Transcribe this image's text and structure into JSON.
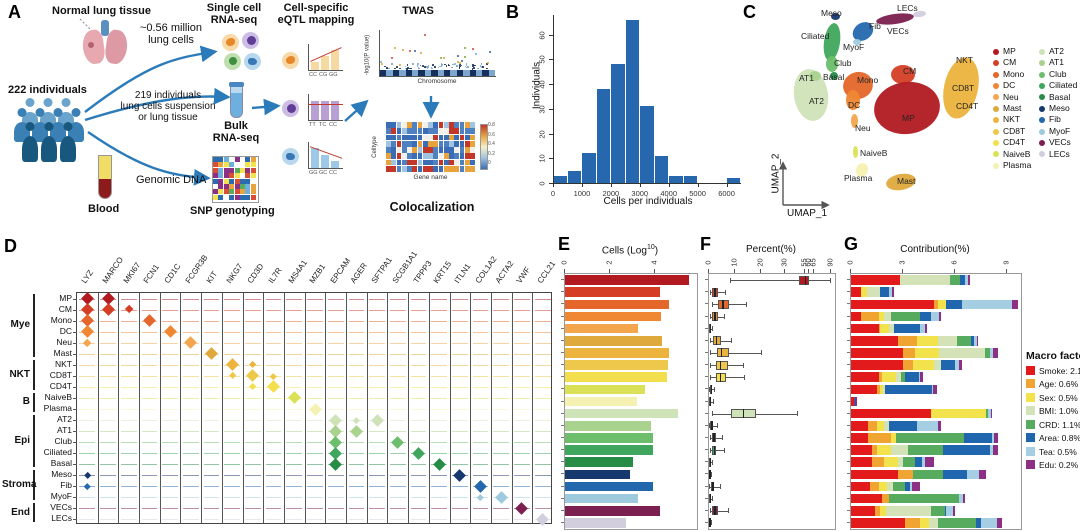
{
  "panel_labels": {
    "a": "A",
    "b": "B",
    "c": "C",
    "d": "D",
    "e": "E",
    "f": "F",
    "g": "G"
  },
  "panel_a": {
    "normal_lung_tissue": "Normal lung tissue",
    "million_cells": "~0.56 million\nlung cells",
    "individuals": "222 individuals",
    "suspension": "219 individuals\nlung cells suspension\nor lung tissue",
    "single_cell": "Single cell\nRNA-seq",
    "bulk": "Bulk\nRNA-seq",
    "genomic_dna": "Genomic DNA",
    "blood": "Blood",
    "snp": "SNP genotyping",
    "eqtl": "Cell-specific\neQTL mapping",
    "twas": "TWAS",
    "coloc": "Colocalization",
    "manhattan_ylabel": "-log10(P value)",
    "manhattan_xlabel": "Chromosome",
    "heatmap_ylabel": "Celltype",
    "heatmap_xlabel": "Gene name",
    "colorbar_ticks": [
      "0.8",
      "0.6",
      "0.4",
      "0.2",
      "0"
    ],
    "genotypes1": [
      "CC",
      "CG",
      "GG"
    ],
    "genotypes2": [
      "TT",
      "TC",
      "CC"
    ],
    "genotypes3": [
      "GG",
      "GC",
      "CC"
    ],
    "arrow_color": "#2b7bba"
  },
  "celltypes": [
    {
      "name": "MP",
      "color": "#b11a21"
    },
    {
      "name": "CM",
      "color": "#d53e25"
    },
    {
      "name": "Mono",
      "color": "#e4662a"
    },
    {
      "name": "DC",
      "color": "#ef8733"
    },
    {
      "name": "Neu",
      "color": "#f3a64e"
    },
    {
      "name": "Mast",
      "color": "#dfa93c"
    },
    {
      "name": "NKT",
      "color": "#ecb33d"
    },
    {
      "name": "CD8T",
      "color": "#eec84a"
    },
    {
      "name": "CD4T",
      "color": "#f3df4d"
    },
    {
      "name": "NaiveB",
      "color": "#dbe156"
    },
    {
      "name": "Plasma",
      "color": "#f5f1b2"
    },
    {
      "name": "AT2",
      "color": "#cfe3b8"
    },
    {
      "name": "AT1",
      "color": "#a9d28e"
    },
    {
      "name": "Club",
      "color": "#6cbe6c"
    },
    {
      "name": "Ciliated",
      "color": "#40a65d"
    },
    {
      "name": "Basal",
      "color": "#268c46"
    },
    {
      "name": "Meso",
      "color": "#17386f"
    },
    {
      "name": "Fib",
      "color": "#2368ad"
    },
    {
      "name": "MyoF",
      "color": "#9ecade"
    },
    {
      "name": "VECs",
      "color": "#7b2050"
    },
    {
      "name": "LECs",
      "color": "#d3cedd"
    }
  ],
  "chart_data": [
    {
      "id": "B",
      "type": "bar",
      "title": "",
      "xlabel": "Cells per individuals",
      "ylabel": "Individuals",
      "bin_width": 500,
      "bin_starts": [
        0,
        500,
        1000,
        1500,
        2000,
        2500,
        3000,
        3500,
        4000,
        4500,
        5000,
        5500,
        6000
      ],
      "values": [
        3,
        5,
        12,
        38,
        48,
        66,
        31,
        11,
        3,
        3,
        0,
        0,
        2
      ],
      "xticks": [
        0,
        1000,
        2000,
        3000,
        4000,
        5000,
        6000
      ],
      "yticks": [
        0,
        10,
        20,
        30,
        40,
        50,
        60
      ],
      "xlim": [
        0,
        6500
      ],
      "ylim": [
        0,
        68
      ],
      "bar_color": "#2767ae",
      "grid": false
    },
    {
      "id": "C",
      "type": "scatter",
      "xlabel": "UMAP_1",
      "ylabel": "UMAP_2",
      "legend_col1": [
        "MP",
        "CM",
        "Mono",
        "DC",
        "Neu",
        "Mast",
        "NKT",
        "CD8T",
        "CD4T",
        "NaiveB",
        "Plasma"
      ],
      "legend_col2": [
        "AT2",
        "AT1",
        "Club",
        "Ciliated",
        "Basal",
        "Meso",
        "Fib",
        "MyoF",
        "VECs",
        "LECs"
      ],
      "blobs": [
        {
          "ct": "AT2",
          "x": 76,
          "y": 95,
          "w": 34,
          "h": 52,
          "rot": -8
        },
        {
          "ct": "AT1",
          "x": 80,
          "y": 76,
          "w": 12,
          "h": 10,
          "rot": 0
        },
        {
          "ct": "Basal",
          "x": 99,
          "y": 76,
          "w": 8,
          "h": 8,
          "rot": 0
        },
        {
          "ct": "Ciliated",
          "x": 97,
          "y": 42,
          "w": 16,
          "h": 38,
          "rot": 8
        },
        {
          "ct": "Club",
          "x": 97,
          "y": 64,
          "w": 12,
          "h": 16,
          "rot": 0
        },
        {
          "ct": "Meso",
          "x": 100,
          "y": 16,
          "w": 9,
          "h": 7,
          "rot": 0
        },
        {
          "ct": "Fib",
          "x": 128,
          "y": 31,
          "w": 22,
          "h": 17,
          "rot": -35
        },
        {
          "ct": "MyoF",
          "x": 122,
          "y": 42,
          "w": 8,
          "h": 6,
          "rot": 0
        },
        {
          "ct": "VECs",
          "x": 160,
          "y": 19,
          "w": 38,
          "h": 10,
          "rot": -8
        },
        {
          "ct": "LECs",
          "x": 184,
          "y": 14,
          "w": 13,
          "h": 6,
          "rot": -8
        },
        {
          "ct": "Mono",
          "x": 123,
          "y": 85,
          "w": 30,
          "h": 27,
          "rot": -15
        },
        {
          "ct": "DC",
          "x": 118,
          "y": 100,
          "w": 14,
          "h": 20,
          "rot": 0
        },
        {
          "ct": "Neu",
          "x": 119,
          "y": 121,
          "w": 7,
          "h": 14,
          "rot": 0
        },
        {
          "ct": "CM",
          "x": 168,
          "y": 74,
          "w": 24,
          "h": 19,
          "rot": 0
        },
        {
          "ct": "MP",
          "x": 172,
          "y": 108,
          "w": 66,
          "h": 52,
          "rot": -8
        },
        {
          "ct": "NKT",
          "x": 226,
          "y": 88,
          "w": 34,
          "h": 62,
          "rot": 12
        },
        {
          "ct": "NaiveB",
          "x": 120,
          "y": 152,
          "w": 5,
          "h": 12,
          "rot": 0
        },
        {
          "ct": "Plasma",
          "x": 127,
          "y": 170,
          "w": 12,
          "h": 14,
          "rot": 20
        },
        {
          "ct": "Mast",
          "x": 166,
          "y": 182,
          "w": 30,
          "h": 16,
          "rot": -10
        }
      ],
      "labels": [
        {
          "t": "Meso",
          "x": 86,
          "y": 8
        },
        {
          "t": "LECs",
          "x": 162,
          "y": 3
        },
        {
          "t": "VECs",
          "x": 152,
          "y": 26
        },
        {
          "t": "Fib",
          "x": 134,
          "y": 21
        },
        {
          "t": "MyoF",
          "x": 108,
          "y": 42
        },
        {
          "t": "Ciliated",
          "x": 66,
          "y": 31
        },
        {
          "t": "Club",
          "x": 99,
          "y": 58
        },
        {
          "t": "AT1",
          "x": 64,
          "y": 73
        },
        {
          "t": "Basal",
          "x": 88,
          "y": 72
        },
        {
          "t": "AT2",
          "x": 74,
          "y": 96
        },
        {
          "t": "Mono",
          "x": 122,
          "y": 75
        },
        {
          "t": "CM",
          "x": 168,
          "y": 66
        },
        {
          "t": "DC",
          "x": 113,
          "y": 100
        },
        {
          "t": "MP",
          "x": 167,
          "y": 113
        },
        {
          "t": "Neu",
          "x": 120,
          "y": 123
        },
        {
          "t": "NKT",
          "x": 221,
          "y": 55
        },
        {
          "t": "CD8T",
          "x": 217,
          "y": 83
        },
        {
          "t": "CD4T",
          "x": 221,
          "y": 101
        },
        {
          "t": "NaiveB",
          "x": 125,
          "y": 148
        },
        {
          "t": "Plasma",
          "x": 109,
          "y": 173
        },
        {
          "t": "Mast",
          "x": 162,
          "y": 176
        }
      ]
    },
    {
      "id": "D",
      "type": "violin-matrix",
      "genes": [
        "LYZ",
        "MARCO",
        "MKI67",
        "FCN1",
        "CD1C",
        "FCGR3B",
        "KIT",
        "NKG7",
        "CD3D",
        "IL7R",
        "MS4A1",
        "MZB1",
        "EPCAM",
        "AGER",
        "SFTPA1",
        "SCGB1A1",
        "TPPP3",
        "KRT15",
        "ITLN1",
        "COL1A2",
        "ACTA2",
        "VWF",
        "CCL21"
      ],
      "groups": [
        {
          "label": "Mye",
          "span": 6
        },
        {
          "label": "NKT",
          "span": 3
        },
        {
          "label": "B",
          "span": 2
        },
        {
          "label": "Epi",
          "span": 5
        },
        {
          "label": "Stroma",
          "span": 3
        },
        {
          "label": "End",
          "span": 2
        }
      ],
      "markers": [
        [
          0,
          0,
          1
        ],
        [
          0,
          1,
          1
        ],
        [
          1,
          0,
          1
        ],
        [
          1,
          1,
          1
        ],
        [
          1,
          2,
          0.7
        ],
        [
          2,
          0,
          1
        ],
        [
          2,
          3,
          1
        ],
        [
          3,
          0,
          1
        ],
        [
          3,
          4,
          1
        ],
        [
          4,
          0,
          0.7
        ],
        [
          4,
          5,
          1
        ],
        [
          5,
          6,
          1
        ],
        [
          6,
          7,
          1
        ],
        [
          6,
          8,
          0.6
        ],
        [
          7,
          7,
          0.6
        ],
        [
          7,
          8,
          1
        ],
        [
          7,
          9,
          0.5
        ],
        [
          8,
          8,
          0.6
        ],
        [
          8,
          9,
          1
        ],
        [
          9,
          10,
          1
        ],
        [
          10,
          11,
          1
        ],
        [
          11,
          12,
          1
        ],
        [
          11,
          13,
          0.5
        ],
        [
          11,
          14,
          1
        ],
        [
          12,
          12,
          1
        ],
        [
          12,
          13,
          1
        ],
        [
          13,
          12,
          1
        ],
        [
          13,
          15,
          1
        ],
        [
          14,
          12,
          1
        ],
        [
          14,
          16,
          1
        ],
        [
          15,
          12,
          1
        ],
        [
          15,
          17,
          1
        ],
        [
          16,
          0,
          0.6
        ],
        [
          16,
          18,
          1
        ],
        [
          17,
          0,
          0.5
        ],
        [
          17,
          19,
          1
        ],
        [
          18,
          19,
          0.5
        ],
        [
          18,
          20,
          1
        ],
        [
          19,
          21,
          1
        ],
        [
          20,
          22,
          1
        ]
      ]
    },
    {
      "id": "E",
      "type": "bar",
      "title_pre": "Cells (Log",
      "title_sup": "10",
      "title_post": ")",
      "xticks": [
        0,
        2,
        4
      ],
      "xlim": [
        0,
        5.85
      ],
      "values": [
        5.5,
        4.2,
        4.6,
        4.25,
        3.25,
        4.3,
        4.6,
        4.55,
        4.5,
        3.55,
        3.2,
        5.0,
        3.8,
        3.9,
        3.9,
        3.0,
        2.9,
        3.9,
        3.25,
        4.2,
        2.7
      ]
    },
    {
      "id": "F",
      "type": "box",
      "title": "Percent(%)",
      "tick_labels": [
        "0",
        "10",
        "20",
        "30",
        "55",
        "60",
        "65",
        "90"
      ],
      "tick_pos": [
        0,
        0.21,
        0.41,
        0.6,
        0.76,
        0.79,
        0.83,
        0.97
      ],
      "scale_anchors": [
        [
          0,
          0
        ],
        [
          10,
          0.21
        ],
        [
          20,
          0.41
        ],
        [
          30,
          0.6
        ],
        [
          55,
          0.76
        ],
        [
          60,
          0.79
        ],
        [
          65,
          0.83
        ],
        [
          90,
          0.97
        ],
        [
          100,
          1.0
        ]
      ],
      "boxes": [
        [
          48,
          55,
          60,
          8,
          88
        ],
        [
          1,
          2,
          3.5,
          0.3,
          6
        ],
        [
          3.5,
          5,
          7.5,
          1,
          14
        ],
        [
          1,
          2,
          3.5,
          0.3,
          5.5
        ],
        [
          0.1,
          0.3,
          0.6,
          0,
          1.2
        ],
        [
          1.5,
          2.5,
          4.5,
          0.2,
          8.5
        ],
        [
          3,
          4.5,
          7.5,
          0.5,
          20
        ],
        [
          2.5,
          4,
          7,
          0.5,
          13
        ],
        [
          2.5,
          4,
          6.5,
          0.3,
          13.5
        ],
        [
          0.3,
          0.6,
          1,
          0,
          2
        ],
        [
          0.1,
          0.3,
          0.6,
          0,
          1.5
        ],
        [
          8.5,
          13,
          18,
          1,
          45
        ],
        [
          0.5,
          0.9,
          1.5,
          0.1,
          3
        ],
        [
          1,
          1.7,
          2.6,
          0.2,
          5
        ],
        [
          1,
          1.8,
          2.7,
          0.2,
          5.5
        ],
        [
          0.1,
          0.25,
          0.5,
          0,
          1
        ],
        [
          0.05,
          0.15,
          0.3,
          0,
          0.6
        ],
        [
          0.7,
          1.2,
          2,
          0.1,
          4
        ],
        [
          0.1,
          0.3,
          0.5,
          0,
          1
        ],
        [
          1.2,
          2,
          3.3,
          0.2,
          7
        ],
        [
          0.05,
          0.15,
          0.3,
          0,
          0.7
        ]
      ]
    },
    {
      "id": "G",
      "type": "stacked-bar",
      "title": "Contribution(%)",
      "xticks": [
        0,
        3,
        6,
        9
      ],
      "xlim": [
        0,
        9.8
      ],
      "legend_title": "Macro factors",
      "series_names": [
        "Smoke",
        "Age",
        "Sex",
        "BMI",
        "CRD",
        "Area",
        "Tea",
        "Edu"
      ],
      "series_colors": [
        "#e31a1c",
        "#f0a432",
        "#f2e34c",
        "#d4e2b8",
        "#56ab5e",
        "#1f66ae",
        "#a6cee3",
        "#8e2f86"
      ],
      "legend_items": [
        "Smoke: 2.1%",
        "Age: 0.6%",
        "Sex: 0.5%",
        "BMI: 1.0%",
        "CRD: 1.1%",
        "Area: 0.8%",
        "Tea: 0.5%",
        "Edu: 0.2%"
      ],
      "rows": [
        [
          2.8,
          0,
          0,
          2.9,
          0.6,
          0.25,
          0.2,
          0.1
        ],
        [
          0.6,
          0,
          0.3,
          0.8,
          0,
          0.5,
          0.15,
          0.15
        ],
        [
          4.8,
          0.2,
          0.5,
          0,
          0,
          0.9,
          2.9,
          0.3
        ],
        [
          0.6,
          1,
          0.3,
          0.4,
          1.7,
          0.6,
          0.5,
          0.1
        ],
        [
          1.6,
          0.1,
          0.5,
          0.3,
          0,
          1.5,
          0.25,
          0.15
        ],
        [
          2.7,
          1.1,
          1.2,
          1.1,
          0.8,
          0.2,
          0.15,
          0.1
        ],
        [
          3,
          0.7,
          1.4,
          2.6,
          0.3,
          0,
          0.2,
          0.3
        ],
        [
          3,
          0.6,
          1.2,
          0.4,
          0,
          0.8,
          0.2,
          0.2
        ],
        [
          1.6,
          0.2,
          0.8,
          0.3,
          0.2,
          0.8,
          0.1,
          0.15
        ],
        [
          1.5,
          0.2,
          0.15,
          0.1,
          0,
          2.7,
          0.1,
          0.2
        ],
        [
          0.15,
          0,
          0,
          0,
          0,
          0.1,
          0,
          0.1
        ],
        [
          4.6,
          0,
          3.2,
          0,
          0.1,
          0,
          0.15,
          0.1
        ],
        [
          1,
          0.5,
          0.4,
          0.3,
          0,
          1.6,
          1.2,
          0.2
        ],
        [
          1,
          1.3,
          0.3,
          0,
          3.9,
          1.6,
          0.15,
          0.2
        ],
        [
          1.2,
          0.3,
          0.8,
          1,
          2,
          2.7,
          0.2,
          0.25
        ],
        [
          1.2,
          0.7,
          0.8,
          0.3,
          0.7,
          0.4,
          0.15,
          0.55
        ],
        [
          2.7,
          0.9,
          0,
          0,
          1.7,
          1.4,
          0.7,
          0.4
        ],
        [
          1.1,
          0.5,
          0.5,
          0.3,
          0.7,
          0.3,
          0.1,
          0.5
        ],
        [
          1.8,
          0.4,
          0,
          0,
          4,
          0,
          0.25,
          0.15
        ],
        [
          1.4,
          0.3,
          0.3,
          2.6,
          0.8,
          0.1,
          0.4,
          0.1
        ],
        [
          3.1,
          0.9,
          0.5,
          0.5,
          2.2,
          0.3,
          0.9,
          0.3
        ]
      ]
    }
  ]
}
